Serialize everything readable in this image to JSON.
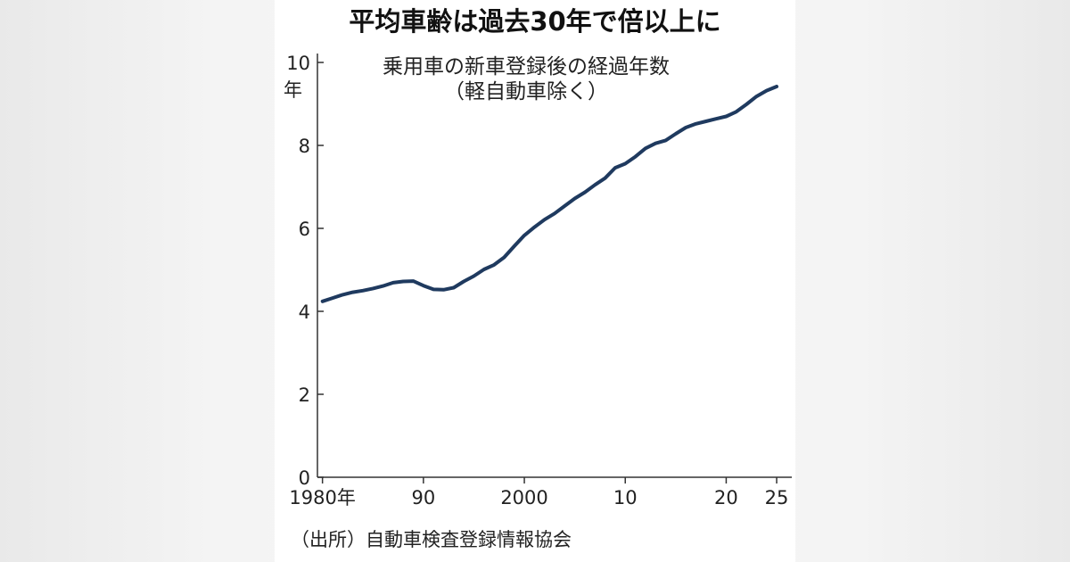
{
  "chart_data": {
    "type": "line",
    "title": "平均車齢は過去30年で倍以上に",
    "subtitle_line1": "乗用車の新車登録後の経過年数",
    "subtitle_line2": "（軽自動車除く）",
    "y_unit": "年",
    "x_first_suffix": "年",
    "source": "（出所）自動車検査登録情報協会",
    "xlim": [
      1979.5,
      2026.5
    ],
    "ylim": [
      0,
      10
    ],
    "x_ticks": [
      {
        "value": 1980,
        "label": "1980"
      },
      {
        "value": 1990,
        "label": "90"
      },
      {
        "value": 2000,
        "label": "2000"
      },
      {
        "value": 2010,
        "label": "10"
      },
      {
        "value": 2020,
        "label": "20"
      },
      {
        "value": 2025,
        "label": "25"
      }
    ],
    "y_ticks": [
      {
        "value": 0,
        "label": "0"
      },
      {
        "value": 2,
        "label": "2"
      },
      {
        "value": 4,
        "label": "4"
      },
      {
        "value": 6,
        "label": "6"
      },
      {
        "value": 8,
        "label": "8"
      },
      {
        "value": 10,
        "label": "10"
      }
    ],
    "grid": false,
    "line_color": "#1f3a5f",
    "series": [
      {
        "x": [
          1980,
          1981,
          1982,
          1983,
          1984,
          1985,
          1986,
          1987,
          1988,
          1989,
          1990,
          1991,
          1992,
          1993,
          1994,
          1995,
          1996,
          1997,
          1998,
          1999,
          2000,
          2001,
          2002,
          2003,
          2004,
          2005,
          2006,
          2007,
          2008,
          2009,
          2010,
          2011,
          2012,
          2013,
          2014,
          2015,
          2016,
          2017,
          2018,
          2019,
          2020,
          2021,
          2022,
          2023,
          2024,
          2025
        ],
        "y": [
          4.24,
          4.32,
          4.4,
          4.46,
          4.5,
          4.55,
          4.61,
          4.69,
          4.72,
          4.73,
          4.62,
          4.53,
          4.52,
          4.57,
          4.72,
          4.85,
          5.01,
          5.12,
          5.3,
          5.57,
          5.83,
          6.03,
          6.21,
          6.36,
          6.54,
          6.72,
          6.87,
          7.05,
          7.21,
          7.46,
          7.56,
          7.73,
          7.93,
          8.05,
          8.12,
          8.28,
          8.43,
          8.52,
          8.58,
          8.64,
          8.7,
          8.81,
          8.99,
          9.18,
          9.32,
          9.42
        ]
      }
    ]
  }
}
